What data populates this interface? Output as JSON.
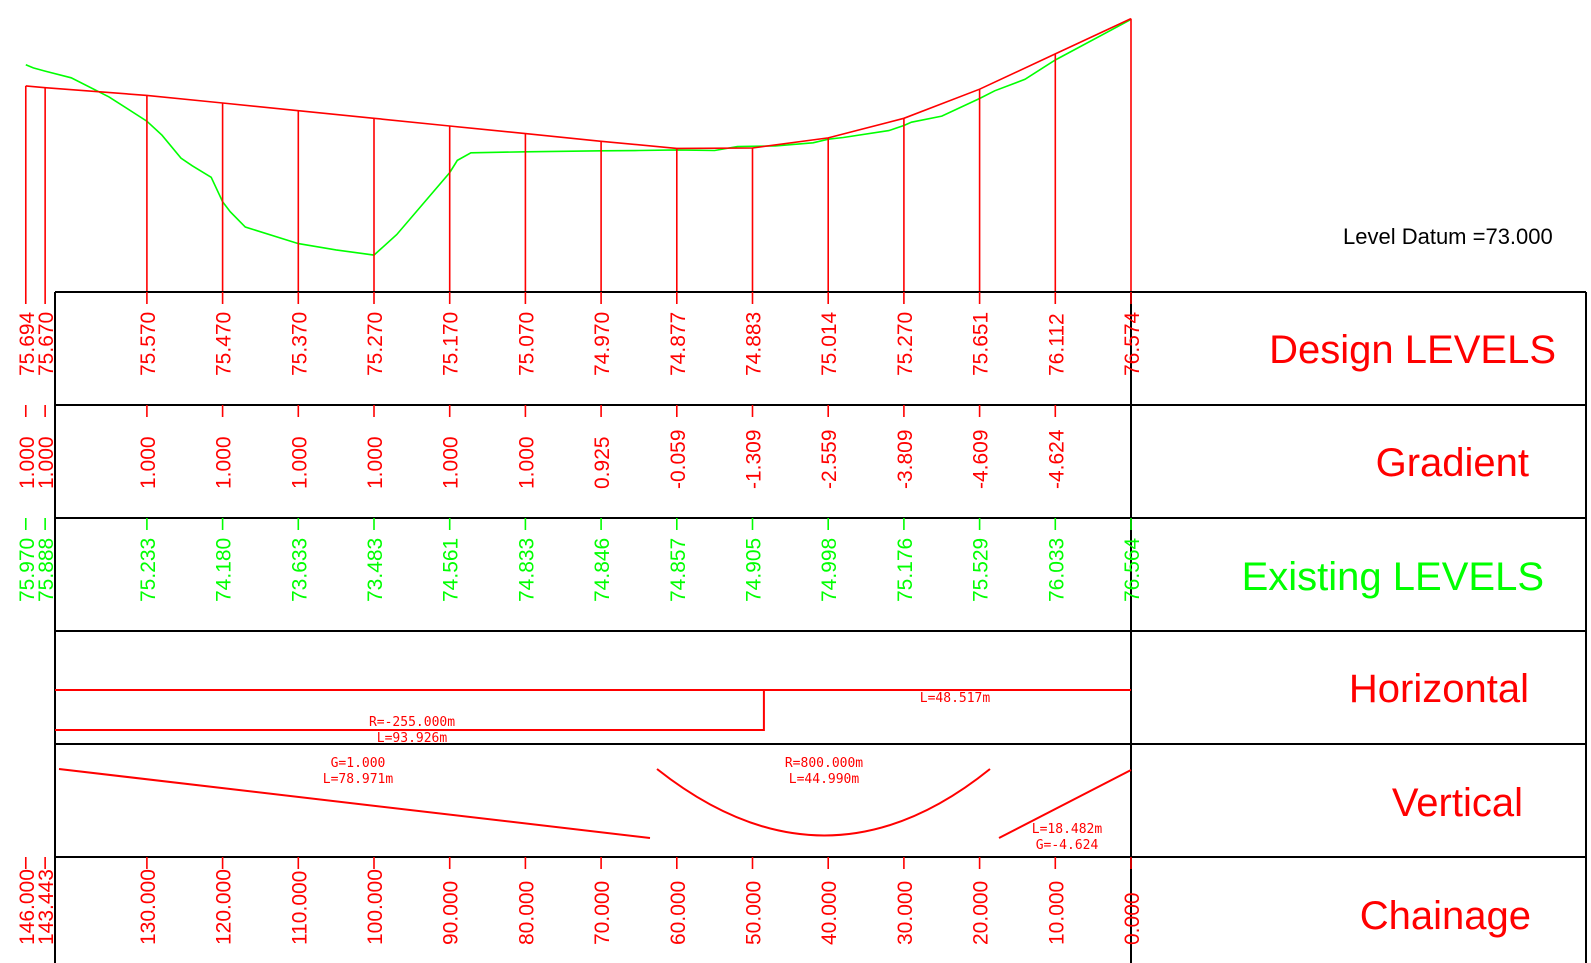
{
  "datum_label": "Level Datum =73.000",
  "colors": {
    "design": "#ff0000",
    "existing": "#00ff00",
    "border": "#000000",
    "text": "#000000"
  },
  "rows": {
    "design_levels": "Design LEVELS",
    "gradient": "Gradient",
    "existing_levels": "Existing  LEVELS",
    "horizontal": "Horizontal",
    "vertical": "Vertical",
    "chainage": "Chainage"
  },
  "stations": [
    {
      "chainage": "146.000",
      "design": "75.694",
      "gradient": "1.000",
      "existing": "75.970"
    },
    {
      "chainage": "143.443",
      "design": "75.670",
      "gradient": "1.000",
      "existing": "75.888"
    },
    {
      "chainage": "130.000",
      "design": "75.570",
      "gradient": "1.000",
      "existing": "75.233"
    },
    {
      "chainage": "120.000",
      "design": "75.470",
      "gradient": "1.000",
      "existing": "74.180"
    },
    {
      "chainage": "110.000",
      "design": "75.370",
      "gradient": "1.000",
      "existing": "73.633"
    },
    {
      "chainage": "100.000",
      "design": "75.270",
      "gradient": "1.000",
      "existing": "73.483"
    },
    {
      "chainage": "90.000",
      "design": "75.170",
      "gradient": "1.000",
      "existing": "74.561"
    },
    {
      "chainage": "80.000",
      "design": "75.070",
      "gradient": "1.000",
      "existing": "74.833"
    },
    {
      "chainage": "70.000",
      "design": "74.970",
      "gradient": "0.925",
      "existing": "74.846"
    },
    {
      "chainage": "60.000",
      "design": "74.877",
      "gradient": "-0.059",
      "existing": "74.857"
    },
    {
      "chainage": "50.000",
      "design": "74.883",
      "gradient": "-1.309",
      "existing": "74.905"
    },
    {
      "chainage": "40.000",
      "design": "75.014",
      "gradient": "-2.559",
      "existing": "74.998"
    },
    {
      "chainage": "30.000",
      "design": "75.270",
      "gradient": "-3.809",
      "existing": "75.176"
    },
    {
      "chainage": "20.000",
      "design": "75.651",
      "gradient": "-4.609",
      "existing": "75.529"
    },
    {
      "chainage": "10.000",
      "design": "76.112",
      "gradient": "-4.624",
      "existing": "76.033"
    },
    {
      "chainage": "0.000",
      "design": "76.574",
      "gradient": "",
      "existing": "76.564"
    }
  ],
  "existing_profile_extra": [
    {
      "chainage": 145,
      "level": 75.93
    },
    {
      "chainage": 140,
      "level": 75.8
    },
    {
      "chainage": 135,
      "level": 75.55
    },
    {
      "chainage": 128,
      "level": 75.05
    },
    {
      "chainage": 125.5,
      "level": 74.75
    },
    {
      "chainage": 124,
      "level": 74.65
    },
    {
      "chainage": 121.5,
      "level": 74.5
    },
    {
      "chainage": 119,
      "level": 74.05
    },
    {
      "chainage": 117,
      "level": 73.85
    },
    {
      "chainage": 105,
      "level": 73.55
    },
    {
      "chainage": 97,
      "level": 73.75
    },
    {
      "chainage": 89,
      "level": 74.72
    },
    {
      "chainage": 87.2,
      "level": 74.82
    },
    {
      "chainage": 65,
      "level": 74.85
    },
    {
      "chainage": 55,
      "level": 74.85
    },
    {
      "chainage": 52,
      "level": 74.9
    },
    {
      "chainage": 47,
      "level": 74.91
    },
    {
      "chainage": 42,
      "level": 74.95
    },
    {
      "chainage": 38,
      "level": 75.02
    },
    {
      "chainage": 32,
      "level": 75.11
    },
    {
      "chainage": 29,
      "level": 75.22
    },
    {
      "chainage": 25,
      "level": 75.3
    },
    {
      "chainage": 18,
      "level": 75.63
    },
    {
      "chainage": 14,
      "level": 75.78
    }
  ],
  "horizontal": {
    "curve_r": "R=-255.000m",
    "curve_l": "L=93.926m",
    "tangent_l": "L=48.517m",
    "break_chainage": 48.5
  },
  "vertical": {
    "g1": "G=1.000",
    "l1": "L=78.971m",
    "r": "R=800.000m",
    "lr": "L=44.990m",
    "l3": "L=18.482m",
    "g3": "G=-4.624"
  }
}
